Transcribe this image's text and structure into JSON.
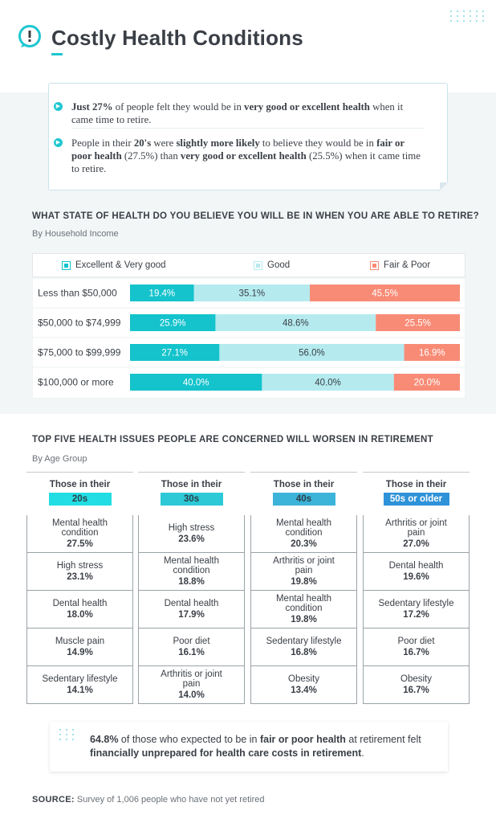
{
  "header": {
    "title": "Costly Health Conditions",
    "icon": "alert-circle-icon",
    "accent_color": "#1ec7d0"
  },
  "callout": {
    "bullet1": {
      "lead": "Just 27%",
      "mid": " of people felt they would be in ",
      "bold": "very good or excellent health",
      "tail": " when it came time to retire."
    },
    "bullet2": {
      "pre": "People in their ",
      "bold1": "20's",
      "mid1": " were ",
      "bold2": "slightly more likely",
      "mid2": " to believe they would be in ",
      "bold3": "fair or poor health",
      "mid3": " (27.5%) than ",
      "bold4": "very good or excellent health",
      "tail": " (25.5%) when it came time to retire."
    }
  },
  "chart_data": [
    {
      "type": "bar",
      "stacked": true,
      "orientation": "horizontal",
      "title": "WHAT STATE OF HEALTH DO YOU BELIEVE YOU WILL BE IN WHEN YOU ARE ABLE TO RETIRE?",
      "subtitle": "By Household Income",
      "categories": [
        "Less than $50,000",
        "$50,000 to $74,999",
        "$75,000 to $99,999",
        "$100,000 or more"
      ],
      "series": [
        {
          "name": "Excellent & Very good",
          "color": "#14c3cc",
          "values": [
            19.4,
            25.9,
            27.1,
            40.0
          ],
          "labels": [
            "19.4%",
            "25.9%",
            "27.1%",
            "40.0%"
          ]
        },
        {
          "name": "Good",
          "color": "#b5ebef",
          "values": [
            35.1,
            48.6,
            56.0,
            40.0
          ],
          "labels": [
            "35.1%",
            "48.6%",
            "56.0%",
            "40.0%"
          ]
        },
        {
          "name": "Fair & Poor",
          "color": "#f88b76",
          "values": [
            45.5,
            25.5,
            16.9,
            20.0
          ],
          "labels": [
            "45.5%",
            "25.5%",
            "16.9%",
            "20.0%"
          ]
        }
      ],
      "legend_position": "top"
    },
    {
      "type": "table",
      "title": "TOP FIVE HEALTH ISSUES PEOPLE ARE CONCERNED WILL WORSEN IN RETIREMENT",
      "subtitle": "By Age Group",
      "columns": [
        {
          "header": "Those in their",
          "group": "20s",
          "badge_color": "#22dde3",
          "rows": [
            {
              "issue": "Mental health condition",
              "pct": "27.5%"
            },
            {
              "issue": "High stress",
              "pct": "23.1%"
            },
            {
              "issue": "Dental health",
              "pct": "18.0%"
            },
            {
              "issue": "Muscle pain",
              "pct": "14.9%"
            },
            {
              "issue": "Sedentary lifestyle",
              "pct": "14.1%"
            }
          ]
        },
        {
          "header": "Those in their",
          "group": "30s",
          "badge_color": "#2dc9d6",
          "rows": [
            {
              "issue": "High stress",
              "pct": "23.6%"
            },
            {
              "issue": "Mental health condition",
              "pct": "18.8%"
            },
            {
              "issue": "Dental health",
              "pct": "17.9%"
            },
            {
              "issue": "Poor diet",
              "pct": "16.1%"
            },
            {
              "issue": "Arthritis or joint pain",
              "pct": "14.0%"
            }
          ]
        },
        {
          "header": "Those in their",
          "group": "40s",
          "badge_color": "#3cb3d9",
          "rows": [
            {
              "issue": "Mental health condition",
              "pct": "20.3%"
            },
            {
              "issue": "Arthritis or joint pain",
              "pct": "19.8%"
            },
            {
              "issue": "Mental health condition",
              "pct": "19.8%"
            },
            {
              "issue": "Sedentary lifestyle",
              "pct": "16.8%"
            },
            {
              "issue": "Obesity",
              "pct": "13.4%"
            }
          ]
        },
        {
          "header": "Those in their",
          "group": "50s or older",
          "badge_color": "#2e92d8",
          "rows": [
            {
              "issue": "Arthritis or joint pain",
              "pct": "27.0%"
            },
            {
              "issue": "Dental health",
              "pct": "19.6%"
            },
            {
              "issue": "Sedentary lifestyle",
              "pct": "17.2%"
            },
            {
              "issue": "Poor diet",
              "pct": "16.7%"
            },
            {
              "issue": "Obesity",
              "pct": "16.7%"
            }
          ]
        }
      ]
    }
  ],
  "stat": {
    "lead": "64.8%",
    "mid1": " of those who expected to be in ",
    "bold1": "fair or poor health",
    "mid2": " at retirement felt ",
    "bold2": "financially unprepared for health care costs in retirement",
    "tail": "."
  },
  "source": {
    "label": "SOURCE:",
    "text": " Survey of 1,006 people who have not yet retired"
  }
}
